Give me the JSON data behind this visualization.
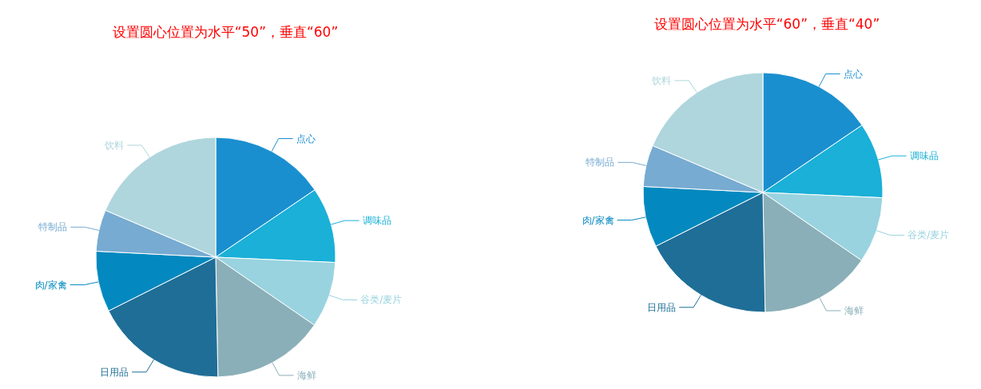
{
  "chart_data": [
    {
      "type": "pie",
      "title": "设置圆心位置为水平“50”，垂直“60”",
      "categories": [
        "点心",
        "调味品",
        "谷类/麦片",
        "海鲜",
        "日用品",
        "肉/家禽",
        "特制品",
        "饮料"
      ],
      "values": [
        15.5,
        10.2,
        8.9,
        15.1,
        17.9,
        8.2,
        5.6,
        18.6
      ],
      "colors": [
        "#1a8fcf",
        "#1ab0d8",
        "#99d3df",
        "#8aafb8",
        "#1f6e97",
        "#0389bf",
        "#77abd1",
        "#afd6dd"
      ]
    },
    {
      "type": "pie",
      "title": "设置圆心位置为水平“60”，垂直“40”",
      "categories": [
        "点心",
        "调味品",
        "谷类/麦片",
        "海鲜",
        "日用品",
        "肉/家禽",
        "特制品",
        "饮料"
      ],
      "values": [
        15.5,
        10.2,
        8.9,
        15.1,
        17.9,
        8.2,
        5.6,
        18.6
      ],
      "colors": [
        "#1a8fcf",
        "#1ab0d8",
        "#99d3df",
        "#8aafb8",
        "#1f6e97",
        "#0389bf",
        "#77abd1",
        "#afd6dd"
      ]
    }
  ]
}
